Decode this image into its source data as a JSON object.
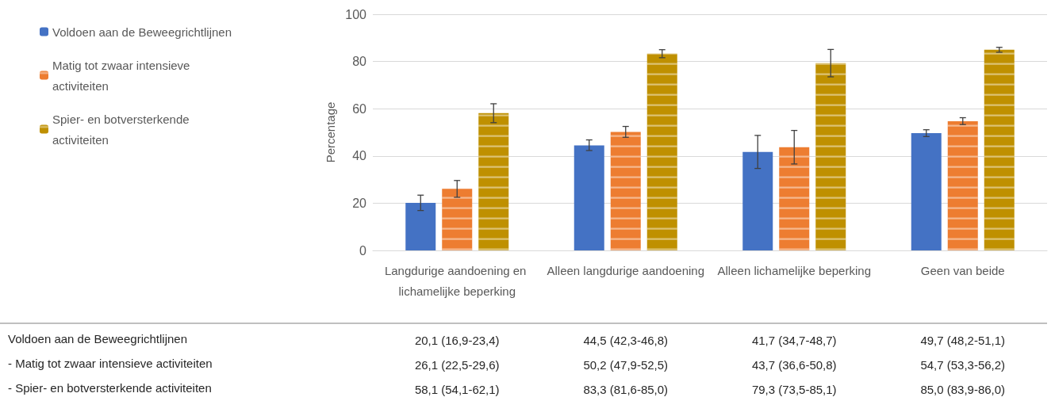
{
  "chart_data": {
    "type": "bar",
    "ylabel": "Percentage",
    "categories": [
      "Langdurige aandoening en lichamelijke beperking",
      "Alleen langdurige aandoening",
      "Alleen lichamelijke beperking",
      "Geen van beide"
    ],
    "series": [
      {
        "name": "Voldoen aan de Beweegrichtlijnen",
        "color": "#4472c4",
        "values": [
          20.1,
          44.5,
          41.7,
          49.7
        ],
        "errors": [
          [
            16.9,
            23.4
          ],
          [
            42.3,
            46.8
          ],
          [
            34.7,
            48.7
          ],
          [
            48.2,
            51.1
          ]
        ],
        "value_labels": [
          "20,1 (16,9-23,4)",
          "44,5 (42,3-46,8)",
          "41,7 (34,7-48,7)",
          "49,7 (48,2-51,1)"
        ]
      },
      {
        "name": "Matig tot zwaar intensieve activiteiten",
        "color": "#ed7d31",
        "values": [
          26.1,
          50.2,
          43.7,
          54.7
        ],
        "errors": [
          [
            22.5,
            29.6
          ],
          [
            47.9,
            52.5
          ],
          [
            36.6,
            50.8
          ],
          [
            53.3,
            56.2
          ]
        ],
        "value_labels": [
          "26,1 (22,5-29,6)",
          "50,2 (47,9-52,5)",
          "43,7 (36,6-50,8)",
          "54,7 (53,3-56,2)"
        ]
      },
      {
        "name": "Spier- en botversterkende activiteiten",
        "color": "#bf9000",
        "values": [
          58.1,
          83.3,
          79.3,
          85.0
        ],
        "errors": [
          [
            54.1,
            62.1
          ],
          [
            81.6,
            85.0
          ],
          [
            73.5,
            85.1
          ],
          [
            83.9,
            86.0
          ]
        ],
        "value_labels": [
          "58,1 (54,1-62,1)",
          "83,3 (81,6-85,0)",
          "79,3 (73,5-85,1)",
          "85,0 (83,9-86,0)"
        ]
      }
    ],
    "annotations": [
      "Voldoen aan de Beweegrichtlijnen",
      "- Matig tot zwaar intensieve activiteiten",
      "- Spier- en botversterkende activiteiten"
    ],
    "ylim": [
      0,
      100
    ],
    "yticks": [
      0,
      20,
      40,
      60,
      80,
      100
    ],
    "grid": "y",
    "legend": "top left"
  }
}
